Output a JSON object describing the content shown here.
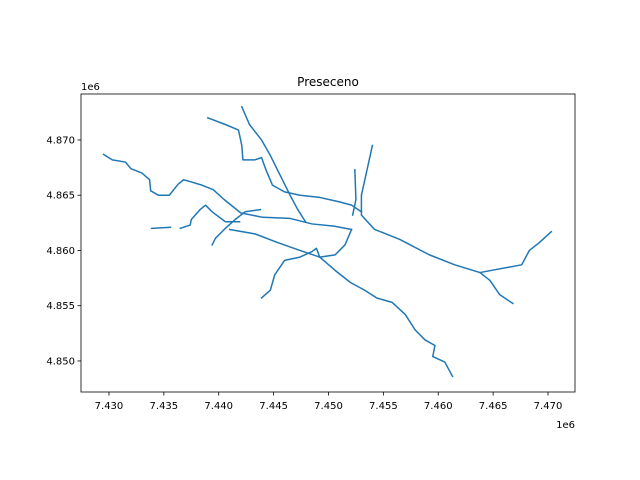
{
  "chart_data": {
    "type": "line",
    "title": "Preseceno",
    "x_offset_text": "1e6",
    "y_offset_text": "1e6",
    "xlim": [
      7.42745,
      7.47246
    ],
    "ylim": [
      4.84719,
      4.87416
    ],
    "xticks": [
      {
        "value": 7.43,
        "label": "7.430"
      },
      {
        "value": 7.435,
        "label": "7.435"
      },
      {
        "value": 7.44,
        "label": "7.440"
      },
      {
        "value": 7.445,
        "label": "7.445"
      },
      {
        "value": 7.45,
        "label": "7.450"
      },
      {
        "value": 7.455,
        "label": "7.455"
      },
      {
        "value": 7.46,
        "label": "7.460"
      },
      {
        "value": 7.465,
        "label": "7.465"
      },
      {
        "value": 7.47,
        "label": "7.470"
      }
    ],
    "yticks": [
      {
        "value": 4.85,
        "label": "4.850"
      },
      {
        "value": 4.855,
        "label": "4.855"
      },
      {
        "value": 4.86,
        "label": "4.860"
      },
      {
        "value": 4.865,
        "label": "4.865"
      },
      {
        "value": 4.87,
        "label": "4.870"
      }
    ],
    "series": [
      {
        "color": "#1f77b4",
        "x": [
          7.4295,
          7.4303,
          7.4315,
          7.432,
          7.433,
          7.4337,
          7.4338,
          7.4345,
          7.4355,
          7.4363,
          7.4368,
          7.4375,
          7.4385,
          7.4395,
          7.4405,
          7.442,
          7.444,
          7.4465,
          7.4485,
          7.4505,
          7.4521
        ],
        "values": [
          4.8687,
          4.8682,
          4.868,
          4.8674,
          4.867,
          4.8664,
          4.8654,
          4.865,
          4.865,
          4.866,
          4.8664,
          4.8662,
          4.8659,
          4.8655,
          4.8646,
          4.8634,
          4.863,
          4.8629,
          4.8624,
          4.8622,
          4.8619
        ]
      },
      {
        "color": "#1f77b4",
        "x": [
          7.439,
          7.4406,
          7.4418,
          7.4421,
          7.4422,
          7.4433,
          7.4439,
          7.4443,
          7.4449,
          7.446,
          7.4474,
          7.4492,
          7.451,
          7.4521,
          7.453
        ],
        "values": [
          4.872,
          4.8714,
          4.8709,
          4.8695,
          4.8682,
          4.8682,
          4.8684,
          4.8673,
          4.8659,
          4.8653,
          4.865,
          4.8648,
          4.8644,
          4.8641,
          4.8635
        ]
      },
      {
        "color": "#1f77b4",
        "x": [
          7.4421,
          7.4428,
          7.4439,
          7.4447,
          7.4456,
          7.4465,
          7.4472,
          7.4479
        ],
        "values": [
          4.873,
          4.8714,
          4.87,
          4.8686,
          4.8668,
          4.865,
          4.8637,
          4.8626
        ]
      },
      {
        "color": "#1f77b4",
        "x": [
          7.441,
          7.4433,
          7.4454,
          7.4474,
          7.4492,
          7.4506,
          7.452,
          7.4533,
          7.4544,
          7.4558,
          7.457,
          7.4579,
          7.4588,
          7.4597,
          7.4595,
          7.4606,
          7.4613
        ],
        "values": [
          4.8619,
          4.8615,
          4.8607,
          4.86,
          4.8594,
          4.8582,
          4.8571,
          4.8564,
          4.8557,
          4.8553,
          4.8542,
          4.8528,
          4.8519,
          4.8514,
          4.8504,
          4.8499,
          4.8486
        ]
      },
      {
        "color": "#1f77b4",
        "x": [
          7.454,
          7.4536,
          7.453,
          7.453,
          7.4542,
          7.4565,
          7.4592,
          7.4615,
          7.4638,
          7.4647,
          7.4656,
          7.4668
        ],
        "values": [
          4.8695,
          4.8677,
          4.865,
          4.8632,
          4.8619,
          4.861,
          4.8596,
          4.8587,
          4.858,
          4.8573,
          4.856,
          4.8552
        ]
      },
      {
        "color": "#1f77b4",
        "x": [
          7.4638,
          7.4676,
          7.4683,
          7.4692,
          7.4703
        ],
        "values": [
          4.858,
          4.8587,
          4.86,
          4.8607,
          4.8617
        ]
      },
      {
        "color": "#1f77b4",
        "x": [
          7.4524,
          7.4525,
          7.4522
        ],
        "values": [
          4.8673,
          4.8646,
          4.8632
        ]
      },
      {
        "color": "#1f77b4",
        "x": [
          7.4439,
          7.4447,
          7.4451,
          7.446,
          7.4474,
          7.4485,
          7.4489,
          7.4492
        ],
        "values": [
          4.8557,
          4.8564,
          4.8578,
          4.8591,
          4.8594,
          4.8599,
          4.8602,
          4.8594
        ]
      },
      {
        "color": "#1f77b4",
        "x": [
          7.4521,
          7.4515,
          7.4506,
          7.4492
        ],
        "values": [
          4.8619,
          4.8605,
          4.8596,
          4.8594
        ]
      },
      {
        "color": "#1f77b4",
        "x": [
          7.4365,
          7.4374,
          7.4375,
          7.4383,
          7.4388,
          7.4394,
          7.4406,
          7.4419
        ],
        "values": [
          4.862,
          4.8623,
          4.8628,
          4.8637,
          4.8641,
          4.8635,
          4.8626,
          4.8626
        ]
      },
      {
        "color": "#1f77b4",
        "x": [
          7.4394,
          7.4397,
          7.4406,
          7.4415,
          7.4424,
          7.4438
        ],
        "values": [
          4.8605,
          4.8611,
          4.862,
          4.8628,
          4.8635,
          4.8637
        ]
      },
      {
        "color": "#1f77b4",
        "x": [
          7.4339,
          7.4356
        ],
        "values": [
          4.862,
          4.8621
        ]
      }
    ]
  }
}
